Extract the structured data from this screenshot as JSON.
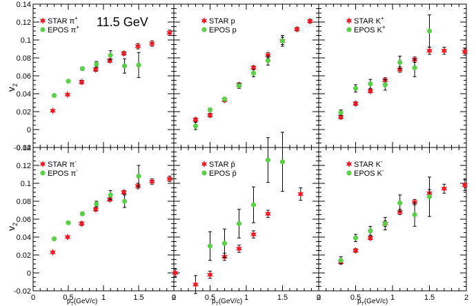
{
  "figure": {
    "energy_label": "11.5 GeV",
    "y_title": "v",
    "y_title_sub": "2",
    "x_title_p": "p",
    "x_title_sub": "T",
    "x_title_rest": "(GeV/c)",
    "colors": {
      "star": "#ee1c25",
      "epos": "#5ccf4a",
      "axes": "#000000"
    }
  },
  "chart_data": [
    {
      "type": "scatter",
      "panel": "top-left",
      "particle": "π+",
      "xlim": [
        0,
        2
      ],
      "ylim": [
        -0.02,
        0.14
      ],
      "legend": "top-left",
      "series": [
        {
          "name": "STAR π+",
          "marker": "star",
          "x": [
            0.28,
            0.49,
            0.69,
            0.89,
            1.09,
            1.29,
            1.49,
            1.69,
            1.94
          ],
          "y": [
            0.021,
            0.039,
            0.053,
            0.067,
            0.077,
            0.085,
            0.093,
            0.096,
            0.108
          ],
          "err": [
            0.001,
            0.001,
            0.002,
            0.002,
            0.002,
            0.002,
            0.003,
            0.003,
            0.003
          ]
        },
        {
          "name": "EPOS π+",
          "marker": "circle",
          "x": [
            0.3,
            0.5,
            0.7,
            0.9,
            1.1,
            1.3,
            1.5
          ],
          "y": [
            0.038,
            0.054,
            0.068,
            0.073,
            0.083,
            0.071,
            0.072
          ],
          "err": [
            0.001,
            0.001,
            0.002,
            0.003,
            0.005,
            0.008,
            0.014
          ]
        }
      ]
    },
    {
      "type": "scatter",
      "panel": "top-middle",
      "particle": "p",
      "xlim": [
        0,
        2
      ],
      "ylim": [
        -0.02,
        0.14
      ],
      "legend": "top-left",
      "series": [
        {
          "name": "STAR p",
          "marker": "star",
          "x": [
            0.3,
            0.5,
            0.7,
            0.9,
            1.1,
            1.3,
            1.5,
            1.7,
            1.88
          ],
          "y": [
            0.011,
            0.016,
            0.033,
            0.05,
            0.069,
            0.083,
            0.099,
            0.112,
            0.121
          ],
          "err": [
            0.002,
            0.002,
            0.002,
            0.002,
            0.002,
            0.003,
            0.004,
            0.002,
            0.002
          ]
        },
        {
          "name": "EPOS p",
          "marker": "circle",
          "x": [
            0.3,
            0.5,
            0.7,
            0.9,
            1.1,
            1.3,
            1.5
          ],
          "y": [
            0.004,
            0.022,
            0.034,
            0.049,
            0.063,
            0.077,
            0.099
          ],
          "err": [
            0.004,
            0.002,
            0.002,
            0.003,
            0.004,
            0.005,
            0.006
          ]
        }
      ]
    },
    {
      "type": "scatter",
      "panel": "top-right",
      "particle": "K+",
      "xlim": [
        0,
        2
      ],
      "ylim": [
        -0.02,
        0.14
      ],
      "legend": "top-left",
      "series": [
        {
          "name": "STAR K+",
          "marker": "star",
          "x": [
            0.3,
            0.5,
            0.7,
            0.9,
            1.1,
            1.3,
            1.5,
            1.7,
            1.98
          ],
          "y": [
            0.014,
            0.029,
            0.043,
            0.055,
            0.067,
            0.078,
            0.088,
            0.088,
            0.087
          ],
          "err": [
            0.002,
            0.002,
            0.002,
            0.003,
            0.003,
            0.003,
            0.004,
            0.004,
            0.004
          ]
        },
        {
          "name": "EPOS K+",
          "marker": "circle",
          "x": [
            0.3,
            0.5,
            0.7,
            0.9,
            1.1,
            1.3,
            1.5
          ],
          "y": [
            0.019,
            0.046,
            0.051,
            0.05,
            0.075,
            0.069,
            0.11
          ],
          "err": [
            0.003,
            0.004,
            0.005,
            0.006,
            0.007,
            0.01,
            0.018
          ]
        }
      ]
    },
    {
      "type": "scatter",
      "panel": "bottom-left",
      "particle": "π-",
      "xlim": [
        0,
        2
      ],
      "ylim": [
        -0.02,
        0.14
      ],
      "legend": "top-left",
      "series": [
        {
          "name": "STAR π-",
          "marker": "star",
          "x": [
            0.28,
            0.49,
            0.69,
            0.89,
            1.09,
            1.29,
            1.49,
            1.69,
            1.94
          ],
          "y": [
            0.023,
            0.04,
            0.055,
            0.071,
            0.082,
            0.09,
            0.097,
            0.102,
            0.105
          ],
          "err": [
            0.001,
            0.001,
            0.002,
            0.002,
            0.002,
            0.002,
            0.003,
            0.003,
            0.003
          ]
        },
        {
          "name": "EPOS π-",
          "marker": "circle",
          "x": [
            0.3,
            0.5,
            0.7,
            0.9,
            1.1,
            1.3,
            1.5
          ],
          "y": [
            0.038,
            0.056,
            0.066,
            0.077,
            0.087,
            0.08,
            0.108
          ],
          "err": [
            0.001,
            0.001,
            0.002,
            0.003,
            0.005,
            0.007,
            0.012
          ]
        }
      ]
    },
    {
      "type": "scatter",
      "panel": "bottom-middle",
      "particle": "p̄",
      "xlim": [
        0,
        2
      ],
      "ylim": [
        -0.02,
        0.14
      ],
      "legend": "top-left",
      "series": [
        {
          "name": "STAR p̄",
          "marker": "star",
          "x": [
            0.02,
            0.3,
            0.5,
            0.7,
            0.9,
            1.1,
            1.3,
            1.75
          ],
          "y": [
            0.0,
            -0.013,
            -0.002,
            0.018,
            0.027,
            0.043,
            0.066,
            0.088
          ],
          "err": [
            0.004,
            0.01,
            0.004,
            0.004,
            0.004,
            0.004,
            0.004,
            0.007
          ]
        },
        {
          "name": "EPOS p̄",
          "marker": "circle",
          "x": [
            0.5,
            0.7,
            0.9,
            1.1,
            1.3,
            1.5
          ],
          "y": [
            0.03,
            0.033,
            0.055,
            0.076,
            0.126,
            0.124
          ],
          "err": [
            0.016,
            0.016,
            0.016,
            0.02,
            0.025,
            0.033
          ]
        }
      ]
    },
    {
      "type": "scatter",
      "panel": "bottom-right",
      "particle": "K-",
      "xlim": [
        0,
        2
      ],
      "ylim": [
        -0.02,
        0.14
      ],
      "legend": "top-left",
      "series": [
        {
          "name": "STAR K-",
          "marker": "star",
          "x": [
            0.3,
            0.5,
            0.7,
            0.9,
            1.1,
            1.3,
            1.5,
            1.7,
            1.98
          ],
          "y": [
            0.012,
            0.025,
            0.039,
            0.055,
            0.068,
            0.079,
            0.089,
            0.094,
            0.098
          ],
          "err": [
            0.002,
            0.002,
            0.002,
            0.003,
            0.003,
            0.003,
            0.004,
            0.005,
            0.006
          ]
        },
        {
          "name": "EPOS K-",
          "marker": "circle",
          "x": [
            0.3,
            0.5,
            0.7,
            0.9,
            1.1,
            1.3,
            1.5
          ],
          "y": [
            0.014,
            0.039,
            0.047,
            0.055,
            0.078,
            0.065,
            0.085
          ],
          "err": [
            0.004,
            0.004,
            0.005,
            0.007,
            0.009,
            0.013,
            0.022
          ]
        }
      ]
    }
  ],
  "legend_labels": [
    {
      "star_base": "STAR π",
      "star_sup": "+",
      "epos_base": "EPOS π",
      "epos_sup": "+"
    },
    {
      "star_base": "STAR p",
      "star_sup": "",
      "epos_base": "EPOS p",
      "epos_sup": ""
    },
    {
      "star_base": "STAR K",
      "star_sup": "+",
      "epos_base": "EPOS K",
      "epos_sup": "+"
    },
    {
      "star_base": "STAR π",
      "star_sup": "-",
      "epos_base": "EPOS π",
      "epos_sup": "-"
    },
    {
      "star_base": "STAR p̄",
      "star_sup": "",
      "epos_base": "EPOS p̄",
      "epos_sup": ""
    },
    {
      "star_base": "STAR K",
      "star_sup": "-",
      "epos_base": "EPOS K",
      "epos_sup": "-"
    }
  ],
  "y_ticks": [
    "-0.02",
    "0",
    "0.02",
    "0.04",
    "0.06",
    "0.08",
    "0.1",
    "0.12",
    "0.14"
  ],
  "y_tick_values": [
    -0.02,
    0,
    0.02,
    0.04,
    0.06,
    0.08,
    0.1,
    0.12,
    0.14
  ],
  "x_tick_labels": [
    {
      "value": 0,
      "text": "0"
    },
    {
      "value": 0.5,
      "text": "0.5"
    },
    {
      "value": 1,
      "text": "1"
    },
    {
      "value": 1.5,
      "text": "1.5"
    },
    {
      "value": 2,
      "text": "2"
    }
  ]
}
